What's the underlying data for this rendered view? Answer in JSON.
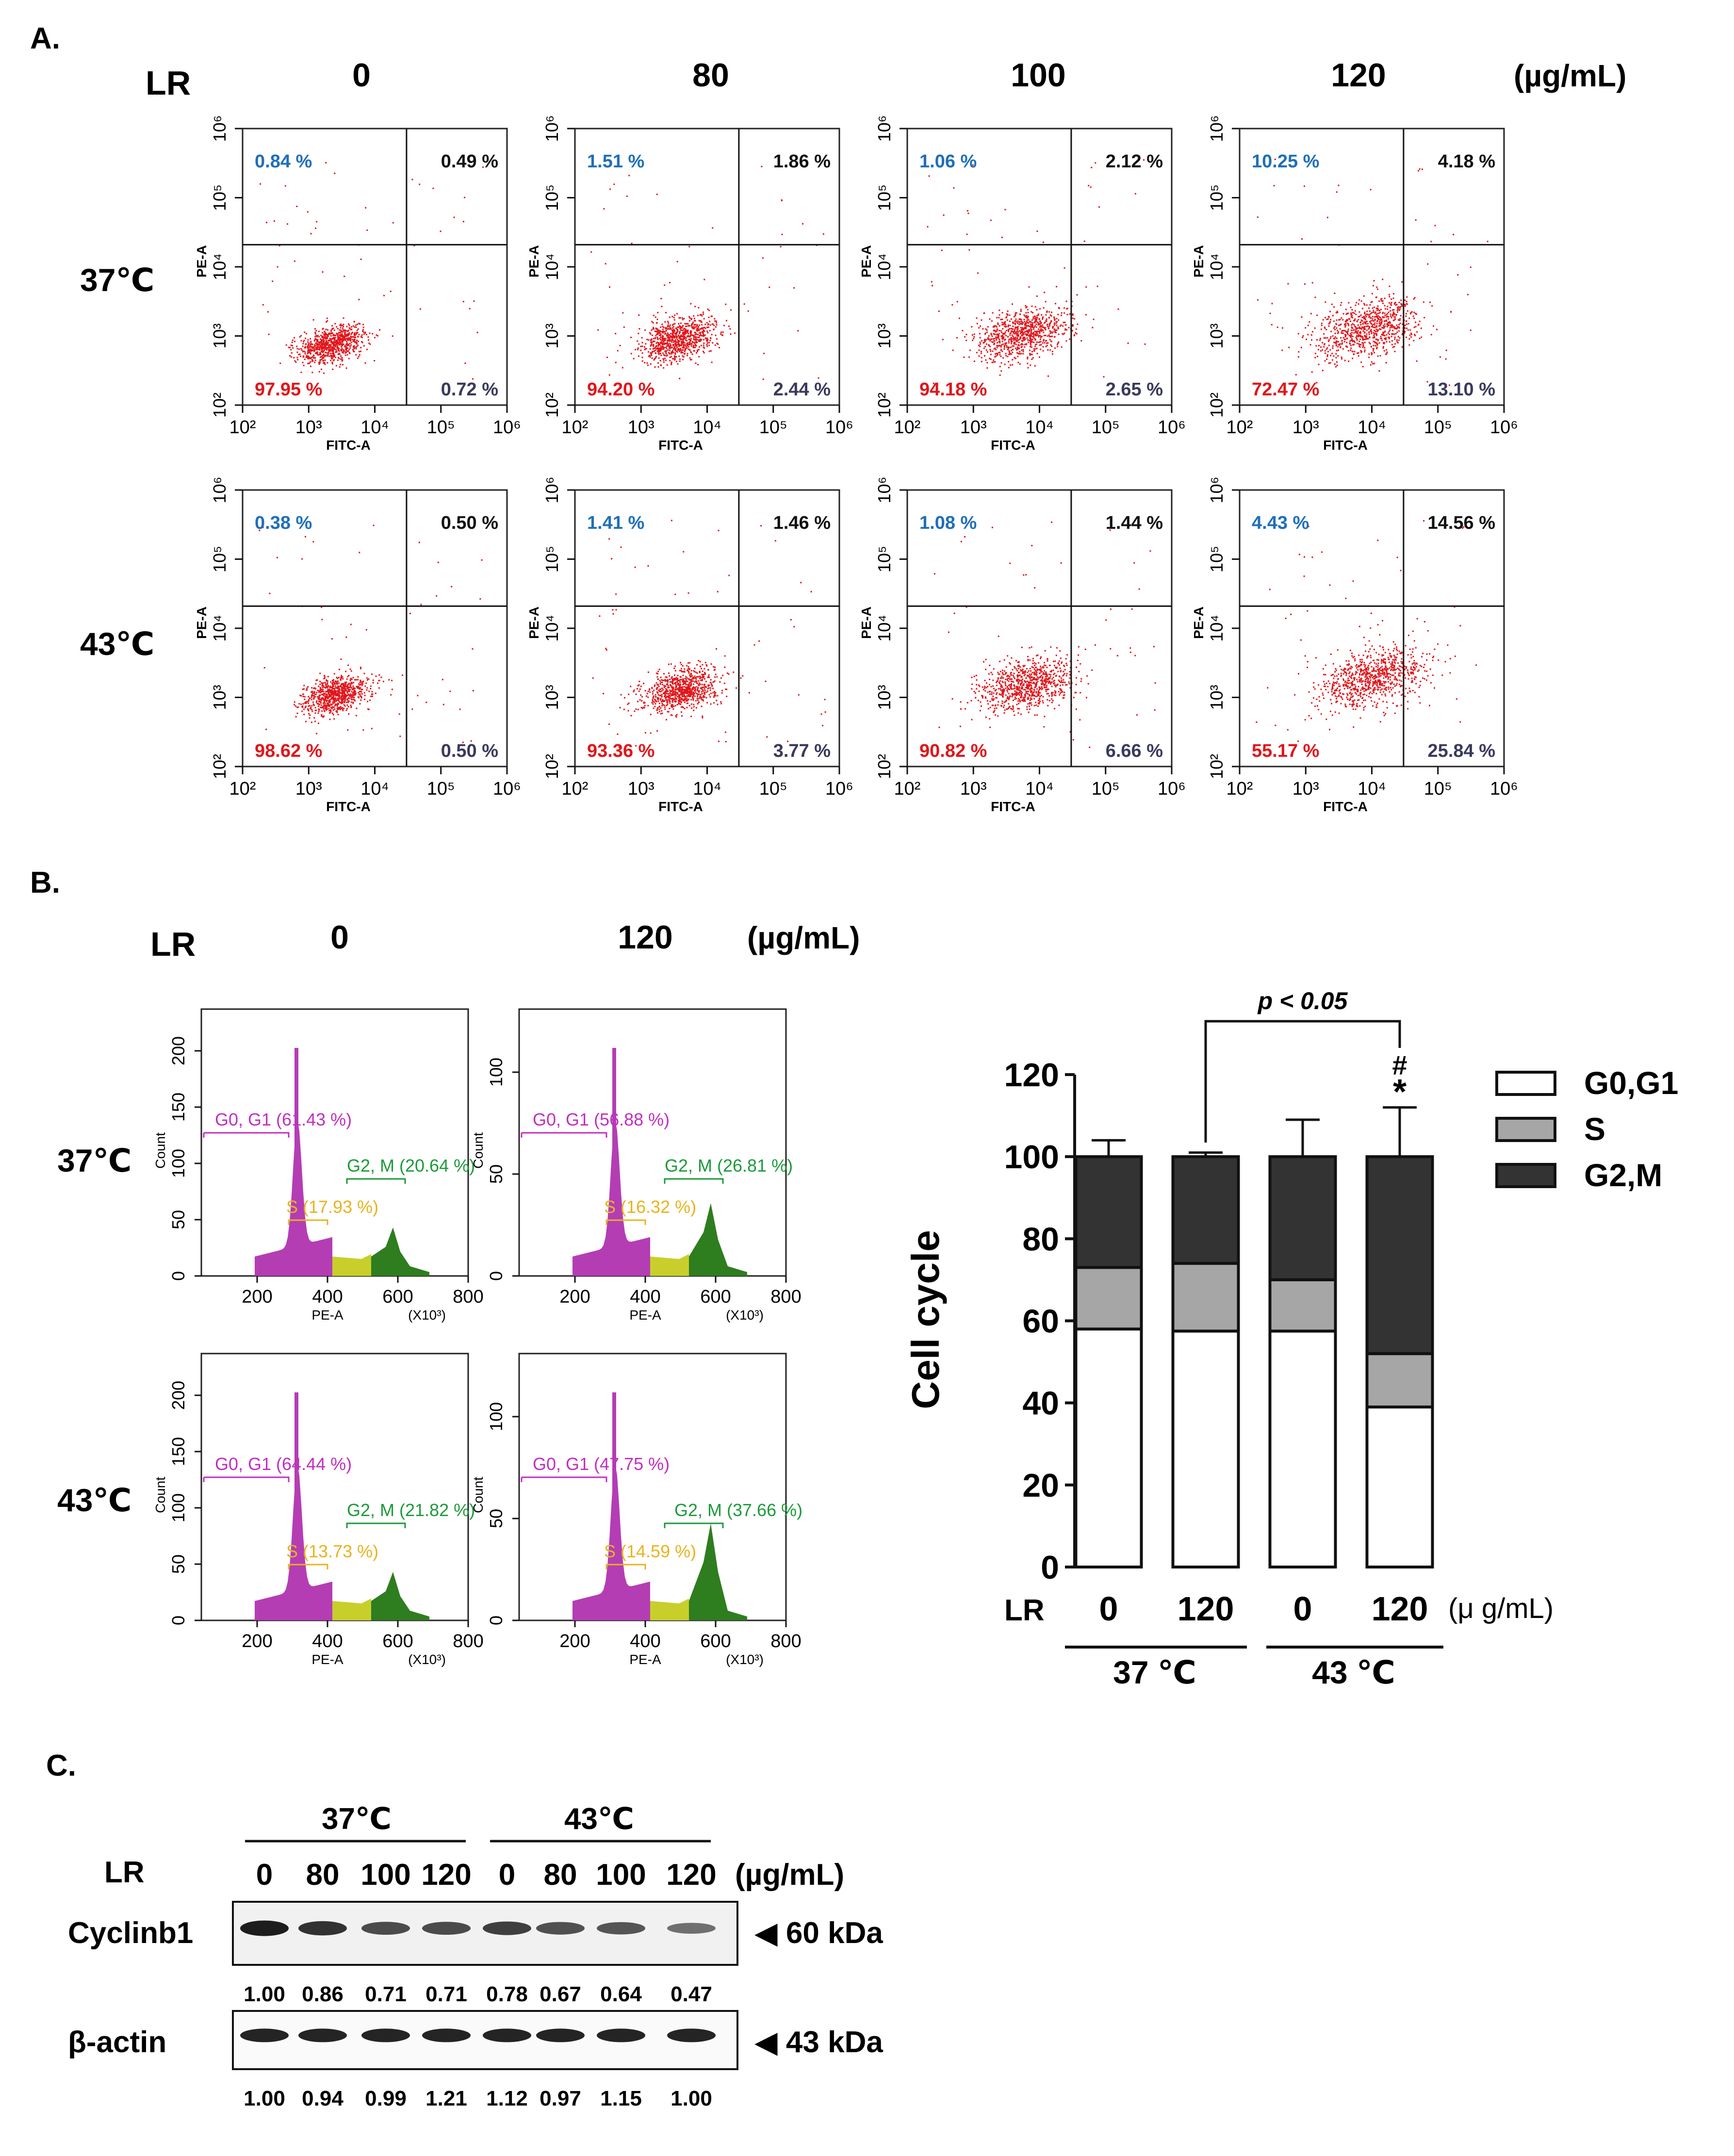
{
  "panelA": {
    "label": "A.",
    "lr_label": "LR",
    "unit": "(µg/mL)",
    "doses": [
      "0",
      "80",
      "100",
      "120"
    ],
    "temps": [
      "37℃",
      "43℃"
    ],
    "x_axis_label": "FITC-A",
    "y_axis_label": "PE-A",
    "x_ticks": [
      "10²",
      "10³",
      "10⁴",
      "10⁵",
      "10⁶"
    ],
    "y_ticks": [
      "10²",
      "10³",
      "10⁴",
      "10⁵",
      "10⁶"
    ],
    "quadrants": [
      [
        {
          "ul": "0.84 %",
          "ur": "0.49 %",
          "ll": "97.95 %",
          "lr": "0.72 %"
        },
        {
          "ul": "1.51 %",
          "ur": "1.86 %",
          "ll": "94.20 %",
          "lr": "2.44 %"
        },
        {
          "ul": "1.06 %",
          "ur": "2.12 %",
          "ll": "94.18 %",
          "lr": "2.65 %"
        },
        {
          "ul": "10.25 %",
          "ur": "4.18 %",
          "ll": "72.47 %",
          "lr": "13.10 %"
        }
      ],
      [
        {
          "ul": "0.38 %",
          "ur": "0.50 %",
          "ll": "98.62 %",
          "lr": "0.50 %"
        },
        {
          "ul": "1.41 %",
          "ur": "1.46 %",
          "ll": "93.36 %",
          "lr": "3.77 %"
        },
        {
          "ul": "1.08 %",
          "ur": "1.44 %",
          "ll": "90.82 %",
          "lr": "6.66 %"
        },
        {
          "ul": "4.43 %",
          "ur": "14.56 %",
          "ll": "55.17 %",
          "lr": "25.84 %"
        }
      ]
    ],
    "colors": {
      "ul": "#1f6fb8",
      "ur": "#111111",
      "ll": "#e0161b",
      "lr": "#3a3a5c",
      "dots": "#e0161b"
    }
  },
  "panelB": {
    "label": "B.",
    "lr_label": "LR",
    "doses": [
      "0",
      "120"
    ],
    "unit": "(µg/mL)",
    "temps": [
      "37℃",
      "43℃"
    ],
    "x_axis_label": "PE-A",
    "x_unit": "(X10³)",
    "y_axis_label": "Count",
    "x_ticks": [
      "200",
      "400",
      "600",
      "800"
    ],
    "y_ticks_large": [
      "0",
      "50",
      "100",
      "150",
      "200"
    ],
    "y_ticks_small": [
      "0",
      "50",
      "100"
    ],
    "histograms": [
      [
        {
          "g0g1": "G0, G1 (61.43 %)",
          "g2m": "G2, M (20.64 %)",
          "s": "S (17.93 %)"
        },
        {
          "g0g1": "G0, G1 (56.88 %)",
          "g2m": "G2, M (26.81 %)",
          "s": "S (16.32 %)"
        }
      ],
      [
        {
          "g0g1": "G0, G1 (64.44 %)",
          "g2m": "G2, M (21.82 %)",
          "s": "S (13.73 %)"
        },
        {
          "g0g1": "G0, G1 (47.75 %)",
          "g2m": "G2, M (37.66 %)",
          "s": "S (14.59 %)"
        }
      ]
    ],
    "colors": {
      "g0g1": "#c02fc0",
      "g2m": "#1c9a3a",
      "s": "#e8b31c",
      "g2m_fill": "#2e7d1f",
      "s_fill": "#c8cf2a",
      "g0_fill": "#b43db4"
    }
  },
  "chart_data": {
    "type": "bar",
    "title": "",
    "ylabel": "Cell cycle",
    "xlabel": "LR",
    "ylim": [
      0,
      120
    ],
    "y_ticks": [
      "0",
      "20",
      "40",
      "60",
      "80",
      "100",
      "120"
    ],
    "categories": [
      "0",
      "120",
      "0",
      "120"
    ],
    "x_unit": "(μ g/mL)",
    "groups": [
      "37 ℃",
      "43 ℃"
    ],
    "series": [
      {
        "name": "G0,G1",
        "values": [
          58,
          57.5,
          57.5,
          39
        ],
        "color": "#ffffff"
      },
      {
        "name": "S",
        "values": [
          15,
          16.5,
          12.5,
          13
        ],
        "color": "#a6a6a6"
      },
      {
        "name": "G2,M",
        "values": [
          27,
          26,
          30,
          48
        ],
        "color": "#333333"
      }
    ],
    "error_bar_top": [
      104,
      101,
      109,
      112
    ],
    "significance": {
      "text": "p < 0.05",
      "markers": [
        "#",
        "*"
      ]
    },
    "legend_position": "top-right"
  },
  "panelC": {
    "label": "C.",
    "temps": [
      "37℃",
      "43℃"
    ],
    "lr_label": "LR",
    "doses": [
      "0",
      "80",
      "100",
      "120",
      "0",
      "80",
      "100",
      "120"
    ],
    "unit": "(µg/mL)",
    "bands": [
      {
        "name": "Cyclinb1",
        "marker": "◀ 60 kDa",
        "values": [
          "1.00",
          "0.86",
          "0.71",
          "0.71",
          "0.78",
          "0.67",
          "0.64",
          "0.47"
        ]
      },
      {
        "name": "β-actin",
        "marker": "◀ 43 kDa",
        "values": [
          "1.00",
          "0.94",
          "0.99",
          "1.21",
          "1.12",
          "0.97",
          "1.15",
          "1.00"
        ]
      }
    ]
  }
}
